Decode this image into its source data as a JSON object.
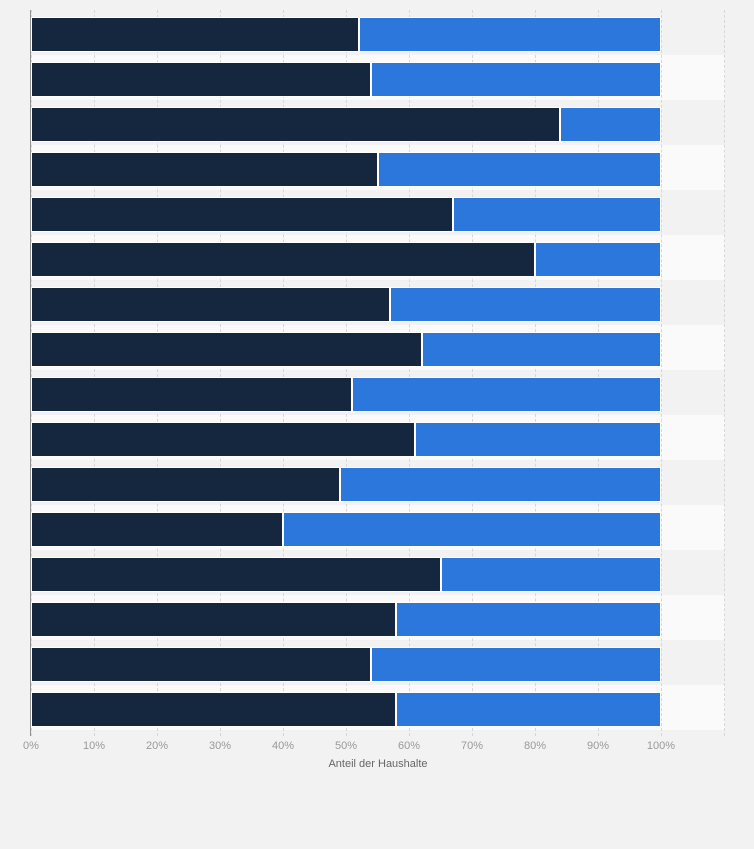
{
  "chart_data": {
    "type": "bar",
    "orientation": "horizontal",
    "stacked": true,
    "title": "",
    "xlabel": "Anteil der Haushalte",
    "ylabel": "",
    "xlim": [
      0,
      110
    ],
    "x_ticks": [
      "0%",
      "10%",
      "20%",
      "30%",
      "40%",
      "50%",
      "60%",
      "70%",
      "80%",
      "90%",
      "100%"
    ],
    "grid": "dashed-vertical-every-10pct",
    "legend": "none",
    "categories": [
      "",
      "",
      "",
      "",
      "",
      "",
      "",
      "",
      "",
      "",
      "",
      "",
      "",
      "",
      "",
      ""
    ],
    "series": [
      {
        "name": "dark-navy-segment",
        "color": "#14273f",
        "values": [
          52,
          54,
          84,
          55,
          67,
          80,
          57,
          62,
          51,
          61,
          49,
          40,
          65,
          58,
          54,
          58
        ]
      },
      {
        "name": "blue-segment",
        "color": "#2b77dc",
        "values": [
          48,
          46,
          16,
          45,
          33,
          20,
          43,
          38,
          49,
          39,
          51,
          60,
          35,
          42,
          46,
          42
        ]
      }
    ]
  },
  "style": {
    "background_color": "#f2f2f2",
    "alternate_band_color": "#fafafa",
    "gridline_color": "#d7d7d7",
    "axis_line_color": "#919191",
    "tick_label_color": "#999999",
    "axis_title_color": "#666666",
    "bar_border_color": "#ffffff"
  }
}
